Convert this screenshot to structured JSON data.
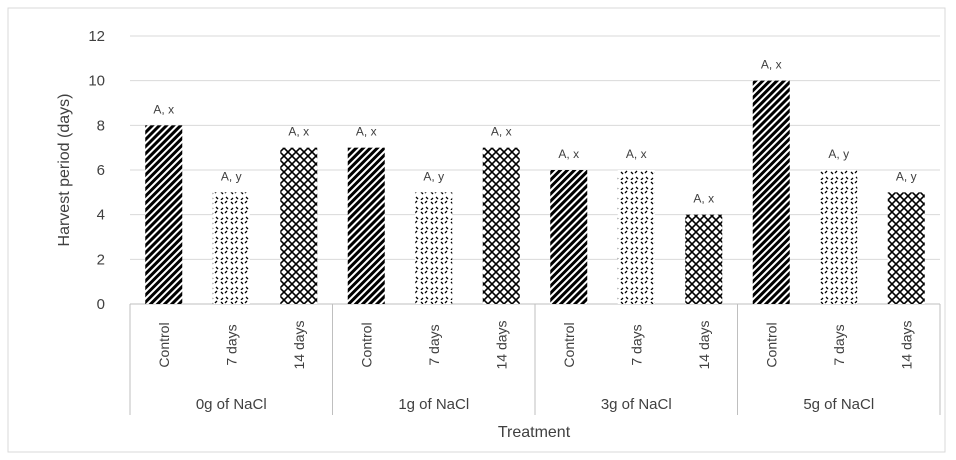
{
  "chart_data": {
    "type": "bar",
    "title": "",
    "xlabel": "Treatment",
    "ylabel": "Harvest period (days)",
    "ylim": [
      0,
      12
    ],
    "yticks": [
      "0",
      "2",
      "4",
      "6",
      "8",
      "10",
      "12"
    ],
    "grid": true,
    "legend": "none",
    "groups": [
      {
        "name": "0g of NaCl",
        "bars": [
          {
            "category": "Control",
            "value": 8,
            "label": "A, x",
            "pattern": "diagonal"
          },
          {
            "category": "7 days",
            "value": 5,
            "label": "A, y",
            "pattern": "dots"
          },
          {
            "category": "14 days",
            "value": 7,
            "label": "A, x",
            "pattern": "crosshatch"
          }
        ]
      },
      {
        "name": "1g of NaCl",
        "bars": [
          {
            "category": "Control",
            "value": 7,
            "label": "A, x",
            "pattern": "diagonal"
          },
          {
            "category": "7 days",
            "value": 5,
            "label": "A, y",
            "pattern": "dots"
          },
          {
            "category": "14 days",
            "value": 7,
            "label": "A, x",
            "pattern": "crosshatch"
          }
        ]
      },
      {
        "name": "3g of NaCl",
        "bars": [
          {
            "category": "Control",
            "value": 6,
            "label": "A, x",
            "pattern": "diagonal"
          },
          {
            "category": "7 days",
            "value": 6,
            "label": "A, x",
            "pattern": "dots"
          },
          {
            "category": "14 days",
            "value": 4,
            "label": "A, x",
            "pattern": "crosshatch"
          }
        ]
      },
      {
        "name": "5g of NaCl",
        "bars": [
          {
            "category": "Control",
            "value": 10,
            "label": "A, x",
            "pattern": "diagonal"
          },
          {
            "category": "7 days",
            "value": 6,
            "label": "A, y",
            "pattern": "dots"
          },
          {
            "category": "14 days",
            "value": 5,
            "label": "A, y",
            "pattern": "crosshatch"
          }
        ]
      }
    ],
    "colors": {
      "bar_pattern": "#000000",
      "bar_background": "#ffffff",
      "grid": "#d9d9d9",
      "axis": "#bfbfbf",
      "text": "#404040"
    }
  }
}
